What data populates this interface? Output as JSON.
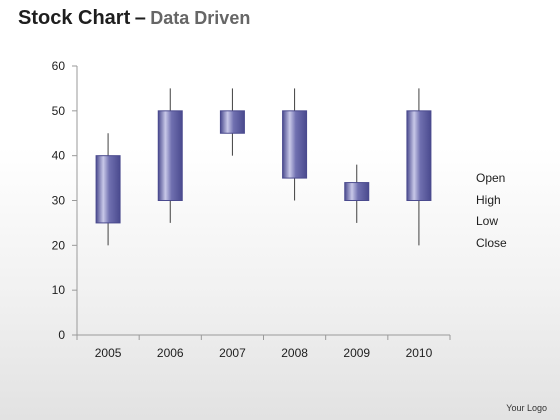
{
  "title": {
    "main": "Stock Chart",
    "separator": "–",
    "subtitle": "Data Driven"
  },
  "logo_text": "Your Logo",
  "chart_data": {
    "type": "candlestick",
    "categories": [
      "2005",
      "2006",
      "2007",
      "2008",
      "2009",
      "2010"
    ],
    "series": [
      {
        "name": "Open",
        "values": [
          25,
          50,
          50,
          50,
          30,
          50
        ]
      },
      {
        "name": "High",
        "values": [
          45,
          55,
          55,
          55,
          38,
          55
        ]
      },
      {
        "name": "Low",
        "values": [
          20,
          25,
          40,
          30,
          25,
          20
        ]
      },
      {
        "name": "Close",
        "values": [
          40,
          30,
          45,
          35,
          34,
          30
        ]
      }
    ],
    "y_ticks": [
      "0",
      "10",
      "20",
      "30",
      "40",
      "50",
      "60"
    ],
    "ylim": [
      0,
      60
    ],
    "grid": false,
    "legend_position": "right",
    "colors": {
      "candle_dark": "#4a4a8e",
      "candle_mid": "#7070b0",
      "candle_light": "#c8c8e8",
      "wick": "#404040",
      "axis": "#9a9a9a"
    }
  }
}
